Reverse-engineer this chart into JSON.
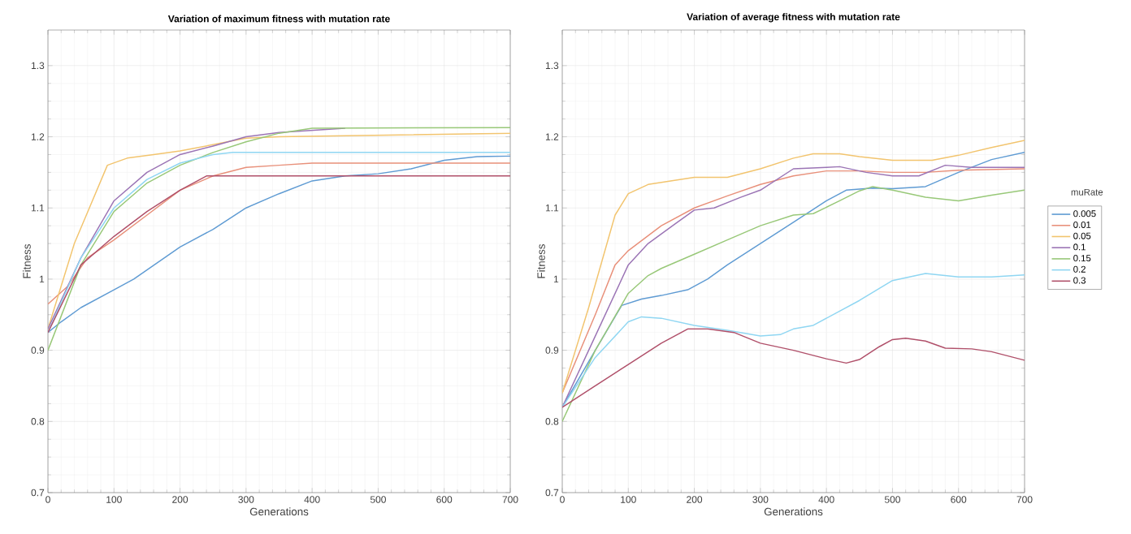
{
  "chart_data": [
    {
      "type": "line",
      "title": "Variation of maximum fitness with mutation rate",
      "xlabel": "Generations",
      "ylabel": "Fitness",
      "xlim": [
        0,
        700
      ],
      "xticks": [
        0,
        100,
        200,
        300,
        400,
        500,
        600,
        700
      ],
      "ylim": [
        0.7,
        1.35
      ],
      "yticks": [
        0.7,
        0.8,
        0.9,
        1,
        1.1,
        1.2,
        1.3
      ],
      "grid": true,
      "legend": false,
      "marker": "none",
      "line_style": "solid",
      "series": [
        {
          "color": "#5f9bd3",
          "x": [
            0,
            20,
            50,
            100,
            130,
            200,
            250,
            300,
            350,
            400,
            450,
            500,
            550,
            600,
            650,
            700
          ],
          "values": [
            0.925,
            0.94,
            0.96,
            0.985,
            1.0,
            1.045,
            1.07,
            1.1,
            1.12,
            1.138,
            1.145,
            1.148,
            1.155,
            1.167,
            1.172,
            1.173
          ]
        },
        {
          "color": "#e8907a",
          "x": [
            0,
            30,
            60,
            100,
            150,
            200,
            250,
            300,
            350,
            400,
            700
          ],
          "values": [
            0.965,
            0.99,
            1.03,
            1.055,
            1.09,
            1.125,
            1.145,
            1.157,
            1.16,
            1.163,
            1.163
          ]
        },
        {
          "color": "#f2c46e",
          "x": [
            0,
            40,
            90,
            120,
            160,
            200,
            300,
            350,
            700
          ],
          "values": [
            0.93,
            1.05,
            1.16,
            1.17,
            1.175,
            1.18,
            1.198,
            1.2,
            1.205
          ]
        },
        {
          "color": "#9b74b5",
          "x": [
            0,
            50,
            100,
            150,
            200,
            250,
            300,
            350,
            450
          ],
          "values": [
            0.93,
            1.03,
            1.11,
            1.15,
            1.175,
            1.187,
            1.2,
            1.206,
            1.212
          ]
        },
        {
          "color": "#98c878",
          "x": [
            0,
            50,
            100,
            150,
            200,
            250,
            300,
            350,
            400,
            700
          ],
          "values": [
            0.9,
            1.02,
            1.095,
            1.135,
            1.16,
            1.178,
            1.193,
            1.205,
            1.212,
            1.213
          ]
        },
        {
          "color": "#8fd6f2",
          "x": [
            0,
            50,
            100,
            150,
            200,
            250,
            280,
            700
          ],
          "values": [
            0.925,
            1.03,
            1.1,
            1.14,
            1.163,
            1.175,
            1.178,
            1.178
          ]
        },
        {
          "color": "#b0506a",
          "x": [
            0,
            50,
            100,
            150,
            200,
            240,
            700
          ],
          "values": [
            0.925,
            1.02,
            1.06,
            1.095,
            1.125,
            1.145,
            1.145
          ]
        }
      ]
    },
    {
      "type": "line",
      "title": "Variation of average fitness with mutation rate",
      "xlabel": "Generations",
      "ylabel": "Fitness",
      "legend_title": "muRate",
      "xlim": [
        0,
        700
      ],
      "xticks": [
        0,
        100,
        200,
        300,
        400,
        500,
        600,
        700
      ],
      "ylim": [
        0.7,
        1.35
      ],
      "yticks": [
        0.7,
        0.8,
        0.9,
        1,
        1.1,
        1.2,
        1.3
      ],
      "grid": true,
      "legend": "right",
      "marker": "none",
      "line_style": "solid",
      "series": [
        {
          "name": "0.005",
          "color": "#5f9bd3",
          "x": [
            0,
            50,
            90,
            120,
            150,
            190,
            220,
            250,
            300,
            350,
            400,
            430,
            470,
            500,
            550,
            600,
            650,
            700
          ],
          "values": [
            0.82,
            0.9,
            0.963,
            0.972,
            0.977,
            0.985,
            1.0,
            1.02,
            1.05,
            1.08,
            1.11,
            1.125,
            1.128,
            1.127,
            1.13,
            1.15,
            1.168,
            1.178
          ]
        },
        {
          "name": "0.01",
          "color": "#e8907a",
          "x": [
            0,
            50,
            80,
            100,
            150,
            200,
            250,
            300,
            350,
            400,
            450,
            500,
            550,
            600,
            700
          ],
          "values": [
            0.84,
            0.95,
            1.02,
            1.04,
            1.075,
            1.1,
            1.117,
            1.133,
            1.145,
            1.152,
            1.152,
            1.15,
            1.15,
            1.153,
            1.155
          ]
        },
        {
          "name": "0.05",
          "color": "#f2c46e",
          "x": [
            0,
            40,
            80,
            100,
            130,
            200,
            250,
            300,
            350,
            380,
            420,
            450,
            500,
            560,
            600,
            650,
            700
          ],
          "values": [
            0.84,
            0.96,
            1.09,
            1.12,
            1.133,
            1.143,
            1.143,
            1.155,
            1.17,
            1.176,
            1.176,
            1.172,
            1.167,
            1.167,
            1.174,
            1.185,
            1.195
          ]
        },
        {
          "name": "0.1",
          "color": "#9b74b5",
          "x": [
            0,
            50,
            100,
            130,
            170,
            200,
            230,
            270,
            300,
            350,
            400,
            420,
            460,
            500,
            540,
            580,
            620,
            700
          ],
          "values": [
            0.82,
            0.92,
            1.02,
            1.05,
            1.077,
            1.097,
            1.1,
            1.115,
            1.125,
            1.155,
            1.157,
            1.158,
            1.15,
            1.145,
            1.145,
            1.16,
            1.157,
            1.157
          ]
        },
        {
          "name": "0.15",
          "color": "#98c878",
          "x": [
            0,
            50,
            100,
            130,
            150,
            200,
            250,
            300,
            350,
            380,
            420,
            450,
            470,
            500,
            550,
            600,
            650,
            700
          ],
          "values": [
            0.8,
            0.9,
            0.98,
            1.005,
            1.015,
            1.035,
            1.055,
            1.075,
            1.09,
            1.092,
            1.11,
            1.124,
            1.13,
            1.125,
            1.115,
            1.11,
            1.118,
            1.125
          ]
        },
        {
          "name": "0.2",
          "color": "#8fd6f2",
          "x": [
            0,
            50,
            100,
            120,
            150,
            200,
            250,
            300,
            330,
            350,
            380,
            420,
            450,
            500,
            550,
            600,
            650,
            700
          ],
          "values": [
            0.82,
            0.89,
            0.94,
            0.947,
            0.945,
            0.935,
            0.928,
            0.92,
            0.922,
            0.93,
            0.935,
            0.955,
            0.97,
            0.998,
            1.008,
            1.003,
            1.003,
            1.006
          ]
        },
        {
          "name": "0.3",
          "color": "#b0506a",
          "x": [
            0,
            50,
            100,
            150,
            190,
            220,
            260,
            300,
            350,
            400,
            430,
            450,
            480,
            500,
            520,
            550,
            580,
            620,
            650,
            700
          ],
          "values": [
            0.82,
            0.85,
            0.88,
            0.91,
            0.93,
            0.93,
            0.925,
            0.91,
            0.9,
            0.888,
            0.882,
            0.887,
            0.905,
            0.915,
            0.917,
            0.913,
            0.903,
            0.902,
            0.898,
            0.886
          ]
        }
      ]
    }
  ]
}
